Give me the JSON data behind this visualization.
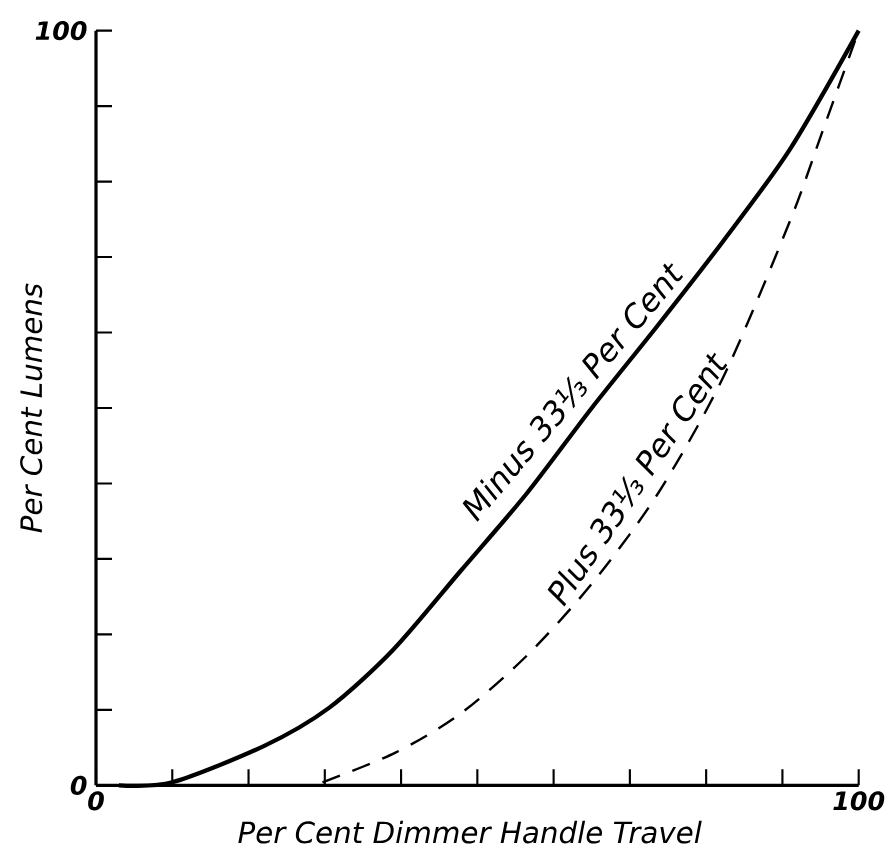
{
  "chart_data": {
    "type": "line",
    "xlabel": "Per Cent Dimmer Handle Travel",
    "ylabel": "Per Cent Lumens",
    "xlim": [
      0,
      100
    ],
    "ylim": [
      0,
      100
    ],
    "xticks": [
      {
        "value": 0,
        "label": "0"
      },
      {
        "value": 10,
        "label": null
      },
      {
        "value": 20,
        "label": null
      },
      {
        "value": 30,
        "label": null
      },
      {
        "value": 40,
        "label": null
      },
      {
        "value": 50,
        "label": null
      },
      {
        "value": 60,
        "label": null
      },
      {
        "value": 70,
        "label": null
      },
      {
        "value": 80,
        "label": null
      },
      {
        "value": 90,
        "label": null
      },
      {
        "value": 100,
        "label": "100"
      }
    ],
    "yticks": [
      {
        "value": 0,
        "label": "0"
      },
      {
        "value": 10,
        "label": null
      },
      {
        "value": 20,
        "label": null
      },
      {
        "value": 30,
        "label": null
      },
      {
        "value": 40,
        "label": null
      },
      {
        "value": 50,
        "label": null
      },
      {
        "value": 60,
        "label": null
      },
      {
        "value": 70,
        "label": null
      },
      {
        "value": 80,
        "label": null
      },
      {
        "value": 90,
        "label": null
      },
      {
        "value": 100,
        "label": "100"
      }
    ],
    "series": [
      {
        "name": "Minus 33⅓ Per Cent",
        "color": "#000000",
        "line_style": "solid",
        "x": [
          3,
          10,
          22,
          30.6,
          39,
          47.8,
          56.5,
          65,
          73.7,
          82.3,
          91,
          100
        ],
        "values": [
          0,
          0.4,
          5.2,
          10.3,
          18,
          28.4,
          38.7,
          50,
          61,
          72.2,
          84.3,
          100
        ]
      },
      {
        "name": "Plus 33⅓ Per Cent",
        "color": "#000000",
        "line_style": "dashed",
        "x": [
          29.7,
          39.2,
          47.8,
          56.5,
          65,
          73.7,
          82.3,
          91,
          95.3,
          100
        ],
        "values": [
          0.4,
          4.3,
          9.5,
          17.2,
          26.7,
          38.7,
          54.2,
          74.8,
          86.8,
          100
        ]
      }
    ]
  }
}
